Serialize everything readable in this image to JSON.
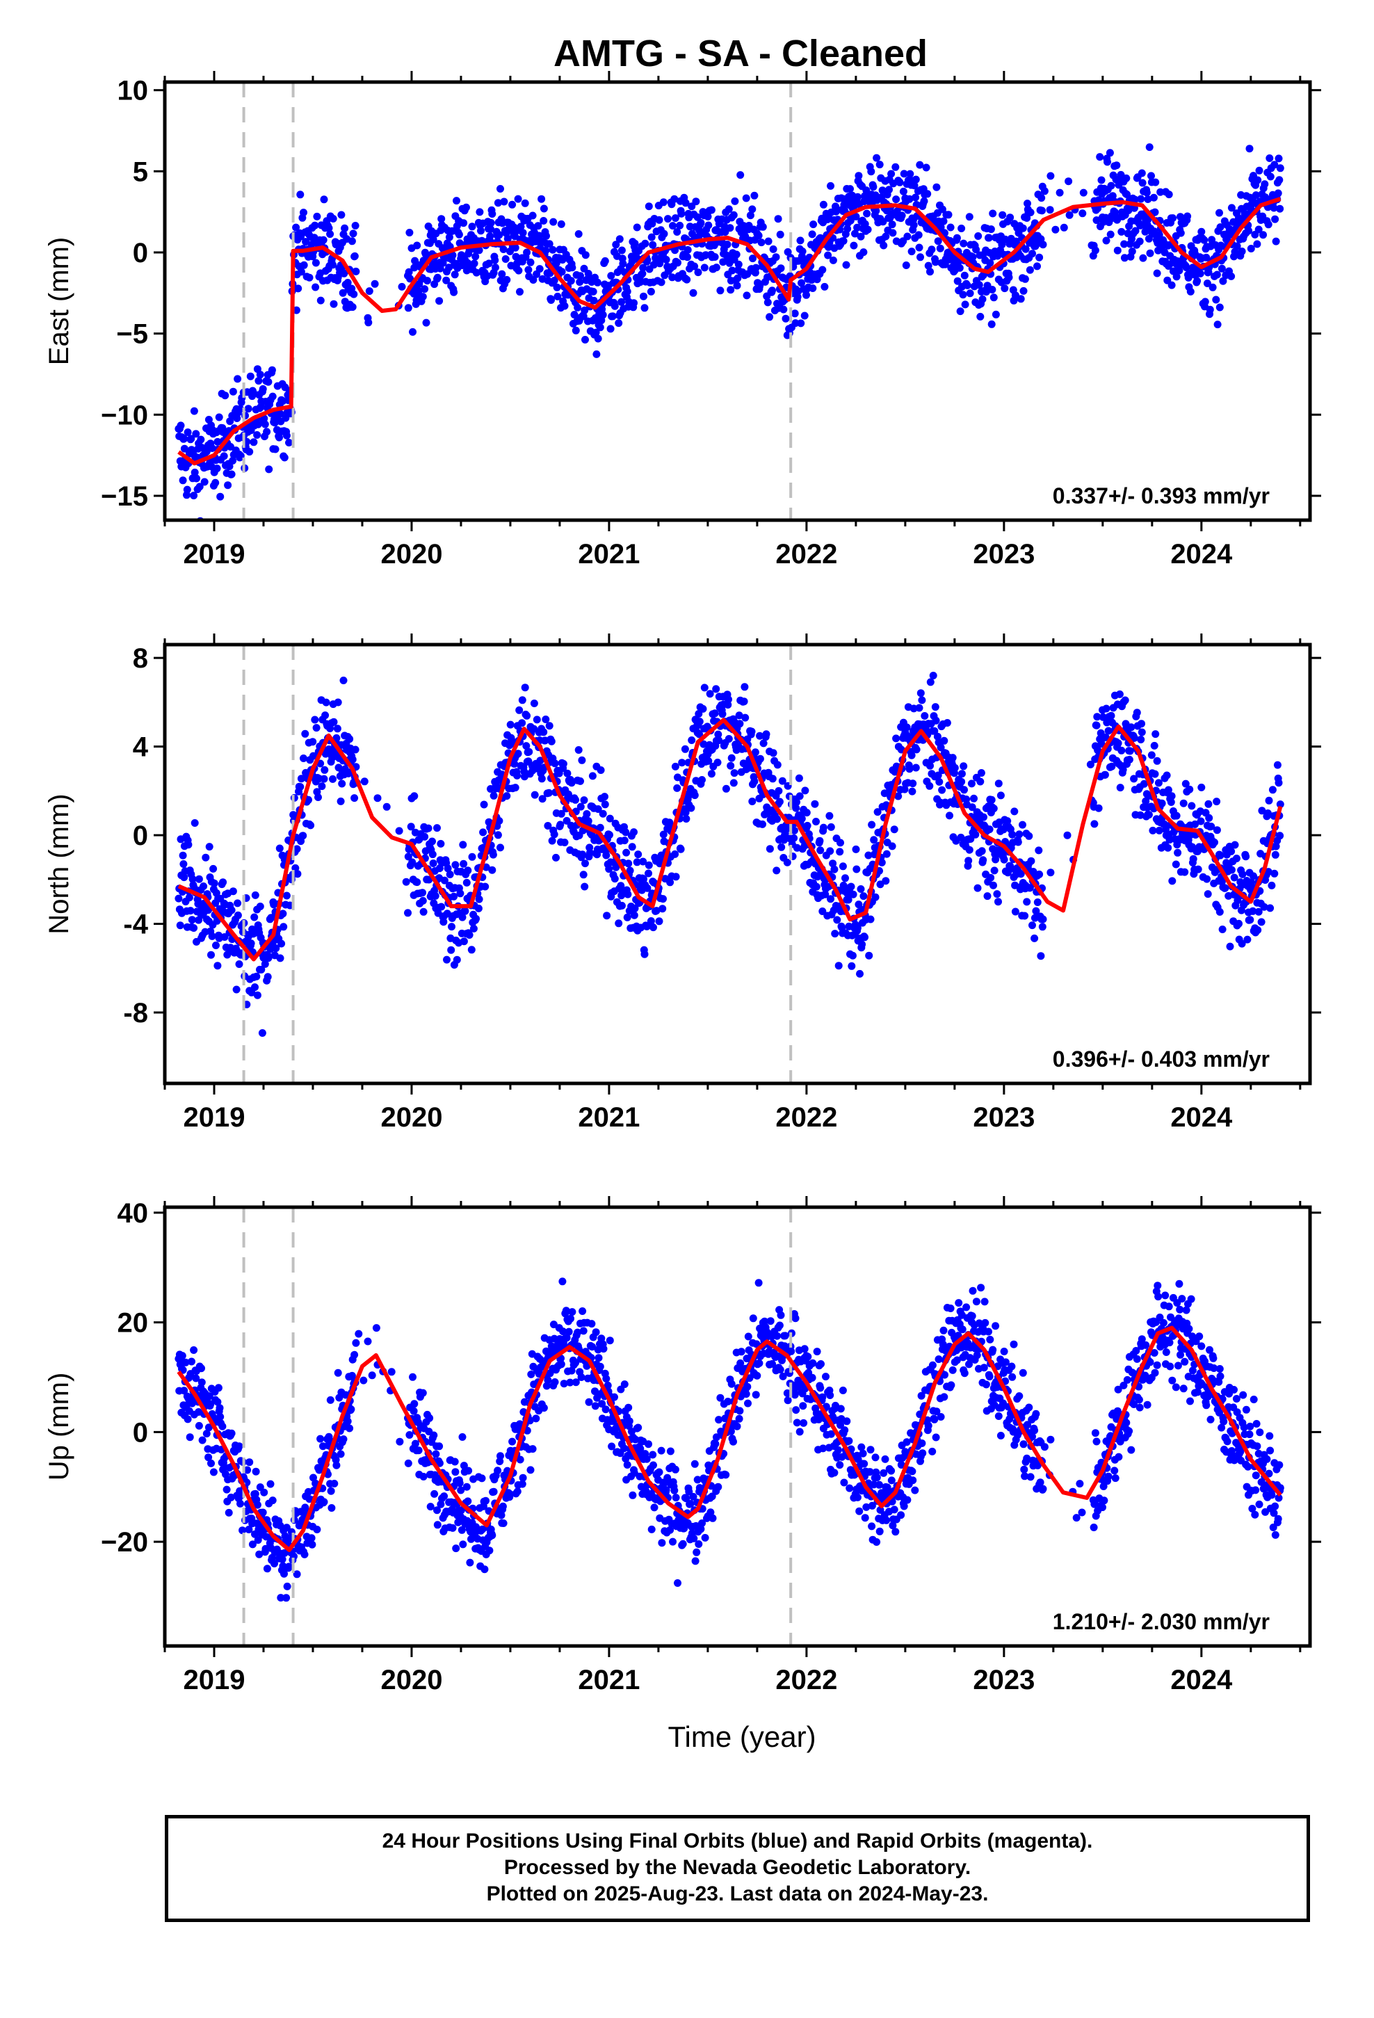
{
  "title": "AMTG  - SA - Cleaned",
  "x_axis_label": "Time (year)",
  "footer": {
    "line1": "24 Hour Positions Using Final Orbits (blue) and Rapid Orbits (magenta).",
    "line2": "Processed by the Nevada Geodetic Laboratory.",
    "line3": "Plotted on 2025-Aug-23. Last data on 2024-May-23."
  },
  "colors": {
    "points": "#0000ff",
    "model": "#ff0000",
    "events": "#c0c0c0",
    "frame": "#000000"
  },
  "chart_data": [
    {
      "type": "scatter",
      "panel": "east",
      "ylabel": "East (mm)",
      "xlim": [
        2018.75,
        2024.55
      ],
      "ylim": [
        -16.5,
        10.5
      ],
      "yticks": [
        10,
        5,
        0,
        -5,
        -10,
        -15
      ],
      "yticklabels": [
        "10",
        "5",
        "0",
        "−5",
        "−10",
        "−15"
      ],
      "xticks": [
        2019,
        2020,
        2021,
        2022,
        2023,
        2024
      ],
      "xticklabels": [
        "2019",
        "2020",
        "2021",
        "2022",
        "2023",
        "2024"
      ],
      "rate_label": "0.337+/- 0.393 mm/yr",
      "event_lines": [
        2019.15,
        2019.4,
        2021.92
      ],
      "model": {
        "x": [
          2018.82,
          2018.9,
          2019.0,
          2019.1,
          2019.2,
          2019.3,
          2019.39,
          2019.4,
          2019.45,
          2019.55,
          2019.65,
          2019.75,
          2019.85,
          2019.92,
          2020.0,
          2020.1,
          2020.25,
          2020.4,
          2020.55,
          2020.65,
          2020.75,
          2020.85,
          2020.93,
          2021.05,
          2021.2,
          2021.35,
          2021.5,
          2021.6,
          2021.7,
          2021.8,
          2021.91,
          2021.92,
          2022.0,
          2022.1,
          2022.2,
          2022.3,
          2022.45,
          2022.55,
          2022.65,
          2022.75,
          2022.85,
          2022.92,
          2023.05,
          2023.2,
          2023.35,
          2023.5,
          2023.6,
          2023.7,
          2023.8,
          2023.9,
          2024.0,
          2024.1,
          2024.2,
          2024.3,
          2024.4
        ],
        "y": [
          -12.3,
          -13.0,
          -12.5,
          -11.0,
          -10.2,
          -9.7,
          -9.5,
          0.1,
          0.1,
          0.3,
          -0.5,
          -2.5,
          -3.6,
          -3.5,
          -2.0,
          -0.3,
          0.3,
          0.5,
          0.6,
          0.0,
          -1.6,
          -3.0,
          -3.4,
          -2.0,
          0.0,
          0.5,
          0.8,
          0.9,
          0.5,
          -0.8,
          -2.9,
          -1.7,
          -1.0,
          0.8,
          2.3,
          2.8,
          2.9,
          2.7,
          1.5,
          0.0,
          -1.0,
          -1.2,
          0.0,
          2.0,
          2.8,
          3.0,
          3.1,
          2.9,
          1.5,
          0.0,
          -0.9,
          -0.3,
          1.5,
          2.9,
          3.3
        ]
      }
    },
    {
      "type": "scatter",
      "panel": "north",
      "ylabel": "North (mm)",
      "xlim": [
        2018.75,
        2024.55
      ],
      "ylim": [
        -11.2,
        8.6
      ],
      "yticks": [
        8,
        4,
        0,
        -4,
        -8
      ],
      "yticklabels": [
        "8",
        "4",
        "0",
        "-4",
        "-8"
      ],
      "xticks": [
        2019,
        2020,
        2021,
        2022,
        2023,
        2024
      ],
      "xticklabels": [
        "2019",
        "2020",
        "2021",
        "2022",
        "2023",
        "2024"
      ],
      "rate_label": "0.396+/- 0.403 mm/yr",
      "event_lines": [
        2019.15,
        2019.4,
        2021.92
      ],
      "model": {
        "x": [
          2018.82,
          2018.95,
          2019.1,
          2019.2,
          2019.3,
          2019.4,
          2019.5,
          2019.58,
          2019.7,
          2019.8,
          2019.9,
          2020.0,
          2020.1,
          2020.2,
          2020.3,
          2020.4,
          2020.5,
          2020.57,
          2020.65,
          2020.75,
          2020.85,
          2020.95,
          2021.05,
          2021.15,
          2021.22,
          2021.35,
          2021.45,
          2021.58,
          2021.7,
          2021.8,
          2021.9,
          2021.95,
          2022.05,
          2022.15,
          2022.22,
          2022.3,
          2022.4,
          2022.5,
          2022.58,
          2022.68,
          2022.8,
          2022.9,
          2023.0,
          2023.1,
          2023.22,
          2023.3,
          2023.4,
          2023.5,
          2023.58,
          2023.68,
          2023.78,
          2023.88,
          2023.98,
          2024.05,
          2024.15,
          2024.25,
          2024.32,
          2024.4
        ],
        "y": [
          -2.3,
          -2.8,
          -4.5,
          -5.6,
          -4.5,
          0.0,
          3.0,
          4.5,
          3.0,
          0.8,
          -0.1,
          -0.4,
          -1.8,
          -3.2,
          -3.2,
          0.0,
          3.5,
          4.8,
          4.0,
          1.8,
          0.5,
          0.1,
          -1.2,
          -2.8,
          -3.2,
          1.0,
          4.2,
          5.2,
          4.0,
          1.8,
          0.6,
          0.6,
          -1.0,
          -2.5,
          -3.8,
          -3.5,
          0.5,
          3.8,
          4.7,
          3.5,
          1.0,
          0.0,
          -0.5,
          -1.5,
          -3.0,
          -3.4,
          0.5,
          3.8,
          4.9,
          3.8,
          1.2,
          0.3,
          0.2,
          -0.8,
          -2.3,
          -3.0,
          -1.5,
          1.3
        ]
      }
    },
    {
      "type": "scatter",
      "panel": "up",
      "ylabel": "Up (mm)",
      "xlim": [
        2018.75,
        2024.55
      ],
      "ylim": [
        -39,
        41
      ],
      "yticks": [
        40,
        20,
        0,
        -20
      ],
      "yticklabels": [
        "40",
        "20",
        "0",
        "−20"
      ],
      "xticks": [
        2019,
        2020,
        2021,
        2022,
        2023,
        2024
      ],
      "xticklabels": [
        "2019",
        "2020",
        "2021",
        "2022",
        "2023",
        "2024"
      ],
      "rate_label": "1.210+/- 2.030 mm/yr",
      "event_lines": [
        2019.15,
        2019.4,
        2021.92
      ],
      "model": {
        "x": [
          2018.82,
          2018.9,
          2019.0,
          2019.1,
          2019.2,
          2019.3,
          2019.38,
          2019.45,
          2019.55,
          2019.65,
          2019.75,
          2019.82,
          2019.95,
          2020.1,
          2020.25,
          2020.38,
          2020.5,
          2020.6,
          2020.7,
          2020.8,
          2020.9,
          2021.0,
          2021.1,
          2021.2,
          2021.3,
          2021.4,
          2021.45,
          2021.55,
          2021.65,
          2021.75,
          2021.8,
          2021.9,
          2022.0,
          2022.1,
          2022.2,
          2022.3,
          2022.38,
          2022.45,
          2022.55,
          2022.65,
          2022.75,
          2022.82,
          2022.9,
          2023.0,
          2023.1,
          2023.2,
          2023.3,
          2023.42,
          2023.5,
          2023.6,
          2023.7,
          2023.78,
          2023.85,
          2023.95,
          2024.05,
          2024.15,
          2024.25,
          2024.4
        ],
        "y": [
          11,
          7,
          1,
          -6,
          -14,
          -19,
          -21.5,
          -18,
          -8,
          3,
          12,
          14,
          5,
          -5,
          -13,
          -17,
          -8,
          5,
          13,
          15.5,
          13,
          6,
          -2,
          -9,
          -13,
          -15.5,
          -14,
          -5,
          7,
          15,
          16.5,
          14,
          9,
          3,
          -3,
          -10,
          -13.5,
          -11,
          -2,
          9,
          16,
          18,
          15,
          8,
          0,
          -6,
          -11,
          -12,
          -7,
          3,
          12,
          18,
          19,
          15,
          8,
          2,
          -5,
          -11.5
        ]
      }
    }
  ]
}
